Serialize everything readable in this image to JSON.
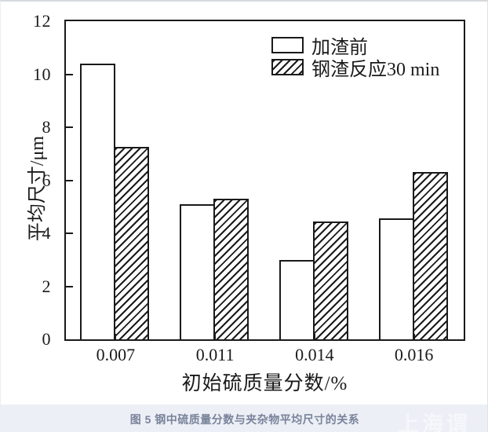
{
  "figure": {
    "caption": "图 5 钢中硫质量分数与夹杂物平均尺寸的关系",
    "watermark": "上海谓"
  },
  "chart_data": {
    "type": "bar",
    "title": "",
    "xlabel": "初始硫质量分数/%",
    "ylabel": "平均尺寸/μm",
    "categories": [
      "0.007",
      "0.011",
      "0.014",
      "0.016"
    ],
    "series": [
      {
        "name": "加渣前",
        "pattern": "solid-white",
        "values": [
          10.4,
          5.1,
          3.0,
          4.55
        ]
      },
      {
        "name": "钢渣反应30 min",
        "pattern": "hatched",
        "values": [
          7.25,
          5.3,
          4.45,
          6.3
        ]
      }
    ],
    "ylim": [
      0,
      12
    ],
    "yticks": [
      0,
      2,
      4,
      6,
      8,
      10,
      12
    ],
    "legend_position": "top-right",
    "grid": false,
    "colors": {
      "bar_fill": "#ffffff",
      "bar_stroke": "#1a1a1a",
      "hatch": "#1a1a1a",
      "caption_bg": "#edeff6"
    }
  }
}
